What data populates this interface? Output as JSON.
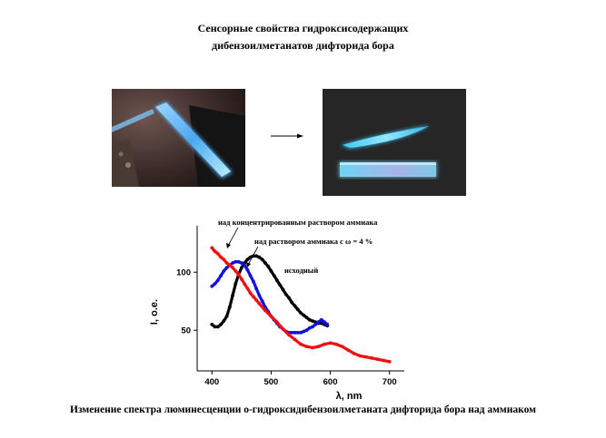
{
  "header": {
    "title_line1": "Сенсорные свойства гидроксисодержащих",
    "title_line2": "дибензоилметанатов дифторида бора"
  },
  "figure": {
    "caption": "Изменение спектра люминесценции о-гидроксидибензоилметаната дифторида бора над аммиаком"
  },
  "chart_data": {
    "type": "line",
    "xlabel": "λ, nm",
    "ylabel": "I, o.e.",
    "xlim": [
      375,
      725
    ],
    "ylim": [
      15,
      140
    ],
    "x_ticks": [
      400,
      500,
      600,
      700
    ],
    "y_ticks": [
      50,
      100
    ],
    "grid": false,
    "series": [
      {
        "name": "исходный",
        "color": "#000000",
        "x": [
          400,
          405,
          410,
          415,
          420,
          425,
          430,
          435,
          440,
          445,
          450,
          455,
          460,
          465,
          470,
          475,
          480,
          485,
          490,
          495,
          500,
          505,
          510,
          515,
          520,
          525,
          530,
          535,
          540,
          545,
          550,
          555,
          560,
          565,
          570,
          575,
          580,
          585,
          590,
          595
        ],
        "y": [
          55,
          53,
          53,
          55,
          58,
          62,
          70,
          80,
          90,
          98,
          104,
          108,
          111,
          113,
          114,
          114,
          113,
          111,
          108,
          105,
          101,
          97,
          93,
          89,
          85,
          81,
          78,
          74,
          71,
          68,
          65,
          63,
          61,
          59,
          58,
          57,
          56,
          56,
          55,
          54
        ]
      },
      {
        "name": "над раствором аммиака с ω = 4 %",
        "color": "#1010e0",
        "x": [
          400,
          405,
          410,
          415,
          420,
          425,
          430,
          435,
          440,
          445,
          450,
          455,
          460,
          465,
          470,
          475,
          480,
          485,
          490,
          495,
          500,
          505,
          510,
          515,
          520,
          525,
          530,
          535,
          540,
          545,
          550,
          555,
          560,
          565,
          570,
          575,
          580,
          585,
          590,
          595
        ],
        "y": [
          88,
          90,
          93,
          97,
          101,
          104,
          106,
          108,
          109,
          109,
          108,
          106,
          102,
          97,
          92,
          86,
          80,
          75,
          70,
          66,
          62,
          59,
          56,
          53,
          51,
          49,
          48,
          48,
          48,
          48,
          48,
          49,
          50,
          52,
          53,
          55,
          57,
          59,
          57,
          55
        ]
      },
      {
        "name": "над концентрированным раствором аммиака",
        "color": "#ee1111",
        "x": [
          400,
          405,
          410,
          415,
          420,
          425,
          430,
          435,
          440,
          445,
          450,
          455,
          460,
          465,
          470,
          475,
          480,
          490,
          500,
          510,
          520,
          530,
          540,
          550,
          560,
          570,
          580,
          590,
          600,
          610,
          620,
          630,
          640,
          650,
          660,
          670,
          680,
          690,
          700
        ],
        "y": [
          121,
          118,
          116,
          113,
          111,
          108,
          106,
          104,
          101,
          98,
          94,
          90,
          86,
          82,
          79,
          76,
          73,
          67,
          62,
          57,
          51,
          46,
          42,
          38,
          36,
          35,
          36,
          38,
          39,
          38,
          36,
          33,
          30,
          28,
          27,
          26,
          25,
          24,
          23
        ]
      }
    ]
  }
}
